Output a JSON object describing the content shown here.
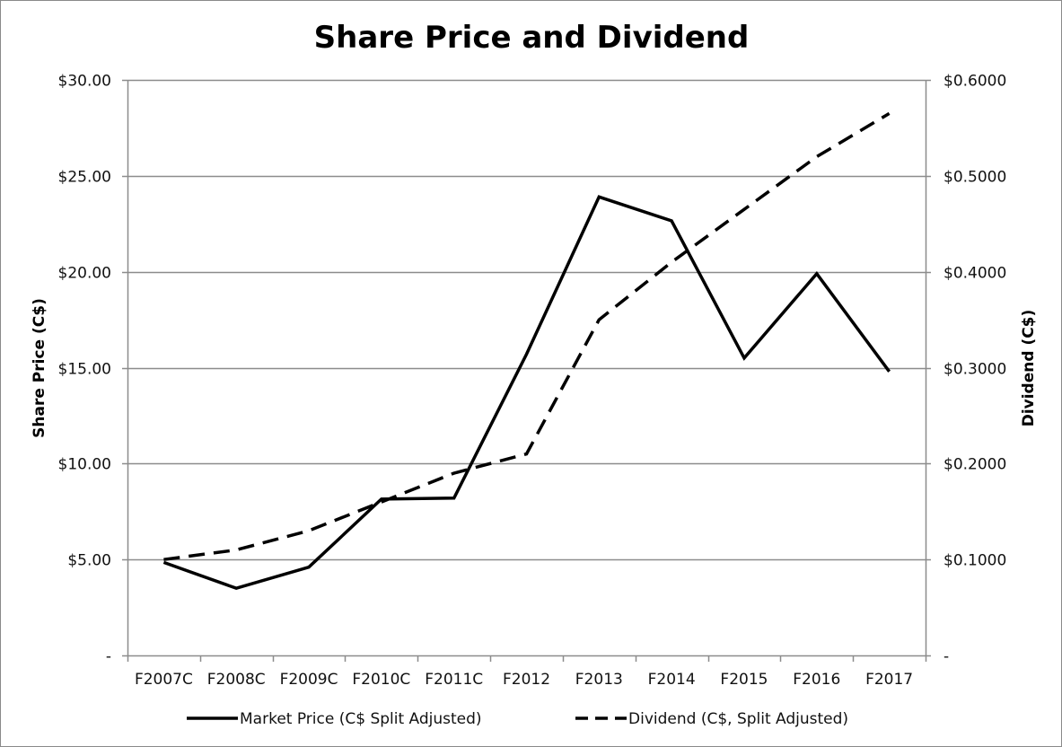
{
  "chart_data": {
    "type": "line",
    "title": "Share Price and Dividend",
    "categories": [
      "F2007C",
      "F2008C",
      "F2009C",
      "F2010C",
      "F2011C",
      "F2012",
      "F2013",
      "F2014",
      "F2015",
      "F2016",
      "F2017"
    ],
    "ylabel": "Share Price (C$)",
    "ylabel_right": "Dividend (C$)",
    "ylim": [
      0,
      30
    ],
    "ylim_right": [
      0,
      0.6
    ],
    "y_ticks": [
      {
        "value": 0,
        "label": "-"
      },
      {
        "value": 5,
        "label": "$5.00"
      },
      {
        "value": 10,
        "label": "$10.00"
      },
      {
        "value": 15,
        "label": "$15.00"
      },
      {
        "value": 20,
        "label": "$20.00"
      },
      {
        "value": 25,
        "label": "$25.00"
      },
      {
        "value": 30,
        "label": "$30.00"
      }
    ],
    "y_ticks_right": [
      {
        "value": 0,
        "label": "-"
      },
      {
        "value": 0.1,
        "label": "$0.1000"
      },
      {
        "value": 0.2,
        "label": "$0.2000"
      },
      {
        "value": 0.3,
        "label": "$0.3000"
      },
      {
        "value": 0.4,
        "label": "$0.4000"
      },
      {
        "value": 0.5,
        "label": "$0.5000"
      },
      {
        "value": 0.6,
        "label": "$0.6000"
      }
    ],
    "grid": true,
    "legend_position": "bottom",
    "series": [
      {
        "name": "Market Price (C$ Split Adjusted)",
        "axis": "left",
        "style": "solid",
        "values": [
          4.85,
          3.5,
          4.6,
          8.15,
          8.2,
          15.7,
          23.9,
          22.65,
          15.5,
          19.9,
          14.8
        ]
      },
      {
        "name": "Dividend (C$, Split Adjusted)",
        "axis": "right",
        "style": "dashed",
        "values": [
          0.1,
          0.11,
          0.13,
          0.16,
          0.19,
          0.21,
          0.35,
          0.41,
          0.465,
          0.52,
          0.565
        ]
      }
    ]
  },
  "colors": {
    "line": "#000000",
    "grid": "#8c8c8c",
    "axis": "#8c8c8c"
  }
}
